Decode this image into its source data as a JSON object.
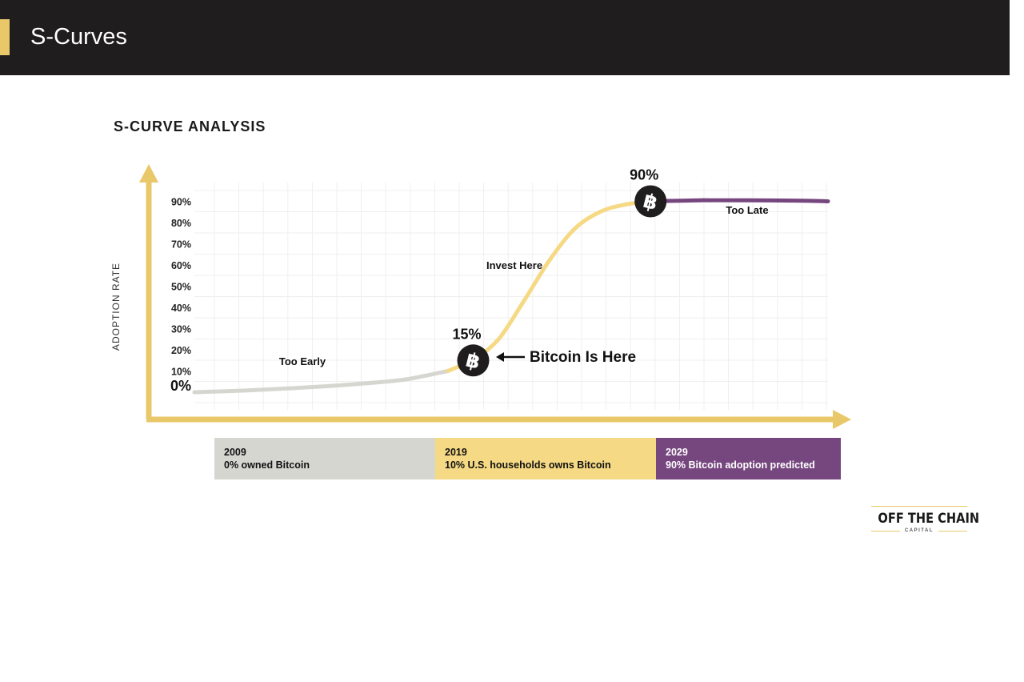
{
  "header": {
    "title": "S-Curves",
    "accent_color": "#e9c86a",
    "background_color": "#1f1d1d"
  },
  "chart_data": {
    "type": "line",
    "title": "S-CURVE ANALYSIS",
    "ylabel": "ADOPTION RATE",
    "xlabel": "",
    "ylim": [
      0,
      100
    ],
    "y_ticks": [
      "0%",
      "10%",
      "20%",
      "30%",
      "40%",
      "50%",
      "60%",
      "70%",
      "80%",
      "90%"
    ],
    "grid": true,
    "x_range": [
      2009,
      2034
    ],
    "series": [
      {
        "phase": "early",
        "color": "#d6d6d1",
        "points": [
          [
            2009,
            0
          ],
          [
            2011,
            0.8
          ],
          [
            2013,
            2
          ],
          [
            2015,
            3.5
          ],
          [
            2017,
            5.5
          ],
          [
            2018,
            7.5
          ],
          [
            2019,
            10
          ]
        ]
      },
      {
        "phase": "growth",
        "color": "#f5d984",
        "points": [
          [
            2019,
            10
          ],
          [
            2019.5,
            12.5
          ],
          [
            2020,
            15
          ],
          [
            2021,
            25
          ],
          [
            2022,
            43
          ],
          [
            2023,
            62
          ],
          [
            2024,
            77
          ],
          [
            2025,
            85
          ],
          [
            2026,
            88.5
          ],
          [
            2027,
            90
          ]
        ]
      },
      {
        "phase": "late",
        "color": "#76467f",
        "points": [
          [
            2027,
            90
          ],
          [
            2029,
            90.5
          ],
          [
            2031,
            90.5
          ],
          [
            2033,
            90.3
          ],
          [
            2034,
            90
          ]
        ]
      }
    ],
    "markers": [
      {
        "x": 2020,
        "y": 15,
        "label": "15%",
        "icon": "bitcoin-icon"
      },
      {
        "x": 2027,
        "y": 90,
        "label": "90%",
        "icon": "bitcoin-icon"
      }
    ],
    "annotations": {
      "too_early": "Too Early",
      "invest_here": "Invest Here",
      "too_late": "Too Late",
      "bitcoin_is_here": "Bitcoin Is Here",
      "zero_label": "0%"
    },
    "timeline": [
      {
        "year": "2009",
        "text": "0% owned Bitcoin",
        "color": "#d6d6d1",
        "text_color": "#111111"
      },
      {
        "year": "2019",
        "text": "10% U.S. households owns Bitcoin",
        "color": "#f5d984",
        "text_color": "#111111"
      },
      {
        "year": "2029",
        "text": "90% Bitcoin adoption predicted",
        "color": "#76467f",
        "text_color": "#ffffff"
      }
    ],
    "axis_color": "#e9c86a"
  },
  "logo": {
    "name": "OFF THE CHAIN",
    "sub": "CAPITAL"
  }
}
